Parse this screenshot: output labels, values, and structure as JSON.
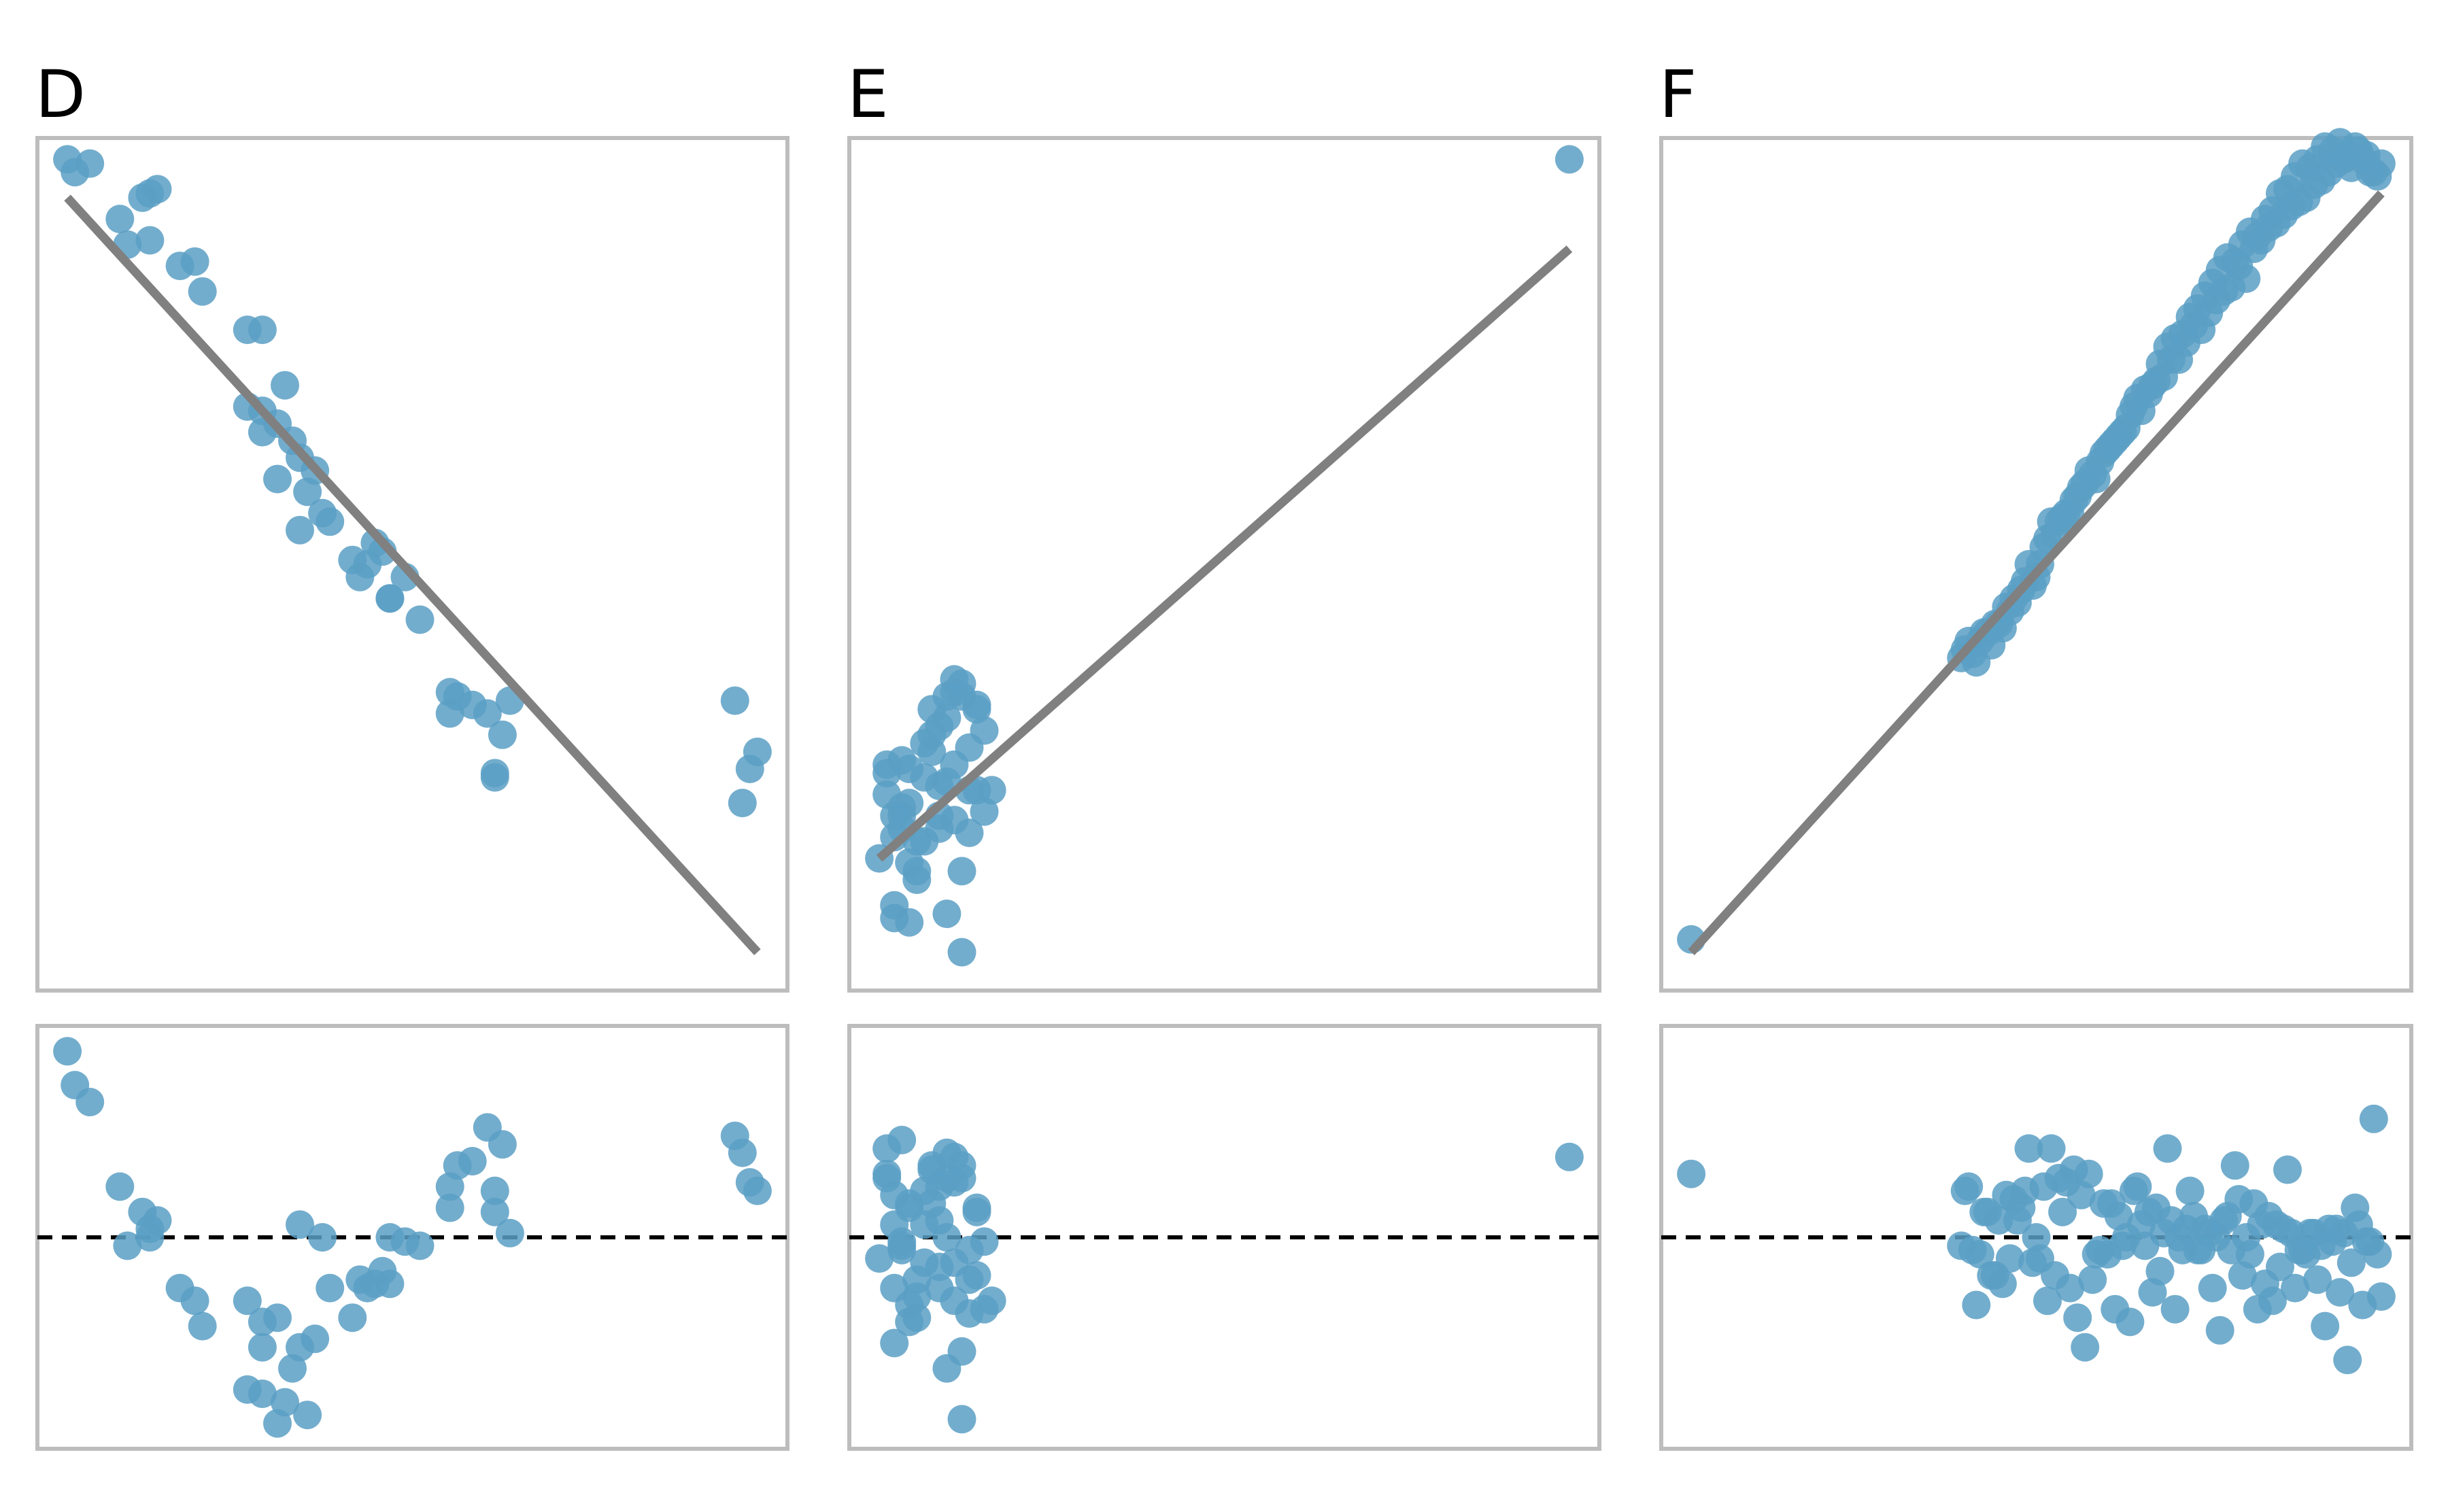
{
  "figure": {
    "point_color": "#5b9fc4",
    "fit_line_color": "#808080",
    "frame_color": "#bdbdbd",
    "zero_line_color": "#000000"
  },
  "chart_data": [
    {
      "panel": "D",
      "type": "scatter",
      "title": "D",
      "xlim": [
        0,
        10
      ],
      "ylim": [
        0,
        10
      ],
      "residual_ylim": [
        -2.5,
        2.5
      ],
      "fit_line": {
        "x": [
          0.4,
          9.6
        ],
        "y": [
          9.3,
          0.45
        ]
      },
      "x": [
        0.4,
        0.5,
        0.7,
        1.1,
        1.4,
        1.6,
        1.5,
        1.5,
        1.2,
        1.9,
        2.1,
        2.2,
        2.8,
        3.0,
        3.3,
        2.8,
        3.0,
        3.2,
        3.0,
        3.5,
        3.4,
        3.7,
        3.2,
        3.6,
        3.8,
        3.5,
        3.9,
        4.2,
        4.4,
        4.5,
        4.6,
        4.7,
        4.3,
        4.9,
        5.1,
        4.7,
        5.6,
        5.5,
        5.5,
        5.8,
        6.0,
        6.2,
        6.1,
        6.1,
        6.3,
        9.3,
        9.4,
        9.5,
        9.6
      ],
      "y": [
        9.75,
        9.6,
        9.7,
        9.05,
        9.3,
        9.4,
        9.35,
        8.8,
        8.75,
        8.5,
        8.55,
        8.2,
        7.75,
        7.75,
        7.1,
        6.85,
        6.55,
        6.65,
        6.8,
        6.25,
        6.45,
        6.1,
        6.0,
        5.85,
        5.6,
        5.4,
        5.5,
        5.05,
        5.0,
        5.25,
        5.15,
        4.6,
        4.85,
        4.85,
        4.35,
        4.6,
        3.45,
        3.25,
        3.5,
        3.35,
        3.25,
        3.0,
        2.55,
        2.5,
        3.4,
        3.4,
        2.2,
        2.6,
        2.8
      ],
      "residuals": [
        2.2,
        1.8,
        1.6,
        0.6,
        0.3,
        0.2,
        0.1,
        0.0,
        -0.1,
        -0.6,
        -0.75,
        -1.05,
        -1.8,
        -1.85,
        -1.95,
        -0.75,
        -1.0,
        -0.95,
        -1.3,
        -1.3,
        -1.55,
        -1.2,
        -2.2,
        -2.1,
        0.0,
        0.15,
        -0.6,
        -0.95,
        -0.6,
        -0.55,
        -0.4,
        -0.55,
        -0.5,
        -0.05,
        -0.1,
        0.0,
        0.85,
        0.6,
        0.35,
        0.9,
        1.3,
        1.1,
        0.55,
        0.3,
        0.05,
        1.2,
        1.0,
        0.65,
        0.55
      ]
    },
    {
      "panel": "E",
      "type": "scatter",
      "title": "E",
      "xlim": [
        0,
        10
      ],
      "ylim": [
        0,
        10
      ],
      "residual_ylim": [
        -2.5,
        2.5
      ],
      "fit_line": {
        "x": [
          0.4,
          9.6
        ],
        "y": [
          1.55,
          8.7
        ]
      },
      "x": [
        0.4,
        0.5,
        0.6,
        0.7,
        0.8,
        0.9,
        1.0,
        1.1,
        1.2,
        1.3,
        1.4,
        0.5,
        0.6,
        0.7,
        0.8,
        0.9,
        1.0,
        1.1,
        1.2,
        1.3,
        1.4,
        1.5,
        1.6,
        1.7,
        1.8,
        1.9,
        0.6,
        0.8,
        1.0,
        1.2,
        1.4,
        1.6,
        1.8,
        0.7,
        0.9,
        1.1,
        1.3,
        1.5,
        1.7,
        0.5,
        0.7,
        1.5,
        1.7,
        1.2,
        1.4,
        1.6,
        0.6,
        0.8,
        1.3,
        1.5,
        9.6
      ],
      "y": [
        1.55,
        2.3,
        1.8,
        2.7,
        2.2,
        1.3,
        1.75,
        3.0,
        2.4,
        3.2,
        3.5,
        2.55,
        2.05,
        1.9,
        2.6,
        1.4,
        2.9,
        3.3,
        2.05,
        2.45,
        2.0,
        3.45,
        2.35,
        3.3,
        3.05,
        2.35,
        1.0,
        0.8,
        2.5,
        1.9,
        3.65,
        1.85,
        2.1,
        2.15,
        1.75,
        2.8,
        3.45,
        0.45,
        3.35,
        2.65,
        2.05,
        1.4,
        2.35,
        3.1,
        2.65,
        2.85,
        0.85,
        1.5,
        0.9,
        3.6,
        9.75
      ],
      "residuals": [
        -0.25,
        0.75,
        0.15,
        1.15,
        0.35,
        -0.7,
        -0.3,
        0.85,
        0.2,
        1.0,
        0.65,
        1.05,
        0.5,
        -0.05,
        0.4,
        -0.95,
        0.55,
        0.8,
        -0.35,
        0.0,
        -0.75,
        0.85,
        -0.5,
        0.35,
        -0.05,
        -0.75,
        -0.6,
        -1.0,
        0.15,
        -0.6,
        0.95,
        -0.9,
        -0.85,
        -0.1,
        -0.5,
        0.4,
        0.7,
        -2.15,
        0.3,
        0.7,
        -0.15,
        -1.35,
        -0.45,
        0.6,
        -0.3,
        -0.15,
        -1.25,
        -0.8,
        -1.55,
        0.7,
        0.95
      ]
    },
    {
      "panel": "F",
      "type": "scatter",
      "title": "F",
      "xlim": [
        0,
        10
      ],
      "ylim": [
        0,
        10
      ],
      "residual_ylim": [
        -2.5,
        2.5
      ],
      "fit_line": {
        "x": [
          0.4,
          9.6
        ],
        "y": [
          0.45,
          9.35
        ]
      },
      "x": [
        0.4,
        4.0,
        4.1,
        4.2,
        4.3,
        4.4,
        4.5,
        4.6,
        4.7,
        4.8,
        4.9,
        5.0,
        5.1,
        5.2,
        5.3,
        5.4,
        5.5,
        5.6,
        5.7,
        5.8,
        5.9,
        6.0,
        6.1,
        6.2,
        6.3,
        6.4,
        6.5,
        6.6,
        6.7,
        6.8,
        6.9,
        7.0,
        7.1,
        7.2,
        7.3,
        7.4,
        7.5,
        7.6,
        7.7,
        7.8,
        7.9,
        8.0,
        8.1,
        8.2,
        8.3,
        8.4,
        8.5,
        8.6,
        8.7,
        8.8,
        8.9,
        9.0,
        9.1,
        9.2,
        9.3,
        9.4,
        9.5,
        9.6,
        4.05,
        4.15,
        4.25,
        4.35,
        4.45,
        4.55,
        4.65,
        4.75,
        4.85,
        4.95,
        5.05,
        5.15,
        5.25,
        5.35,
        5.45,
        5.55,
        5.65,
        5.75,
        5.85,
        5.95,
        6.05,
        6.15,
        6.25,
        6.35,
        6.45,
        6.55,
        6.65,
        6.75,
        6.85,
        6.95,
        7.05,
        7.15,
        7.25,
        7.35,
        7.45,
        7.55,
        7.65,
        7.75,
        7.85,
        7.95,
        8.05,
        8.15,
        8.25,
        8.35,
        8.45,
        8.55,
        8.65,
        8.75,
        8.85,
        8.95,
        9.05,
        9.15,
        9.25,
        9.35,
        9.45,
        9.55
      ],
      "y": [
        0.6,
        3.9,
        4.1,
        3.85,
        4.2,
        4.05,
        4.3,
        4.5,
        4.6,
        4.7,
        5.0,
        4.85,
        5.2,
        5.5,
        5.5,
        5.6,
        5.75,
        5.9,
        6.1,
        6.0,
        6.3,
        6.4,
        6.5,
        6.6,
        6.85,
        6.8,
        7.0,
        7.15,
        7.2,
        7.4,
        7.4,
        7.6,
        7.8,
        7.75,
        7.95,
        8.1,
        8.2,
        8.25,
        8.5,
        8.35,
        8.7,
        8.8,
        8.95,
        9.0,
        9.1,
        9.2,
        9.25,
        9.3,
        9.45,
        9.5,
        9.6,
        9.7,
        9.75,
        9.65,
        9.85,
        9.8,
        9.6,
        9.7,
        4.0,
        3.95,
        4.1,
        4.2,
        4.3,
        4.25,
        4.45,
        4.55,
        4.8,
        4.75,
        5.0,
        5.3,
        5.35,
        5.55,
        5.6,
        5.8,
        5.95,
        6.05,
        6.2,
        6.35,
        6.45,
        6.55,
        6.75,
        6.95,
        7.05,
        7.1,
        7.35,
        7.55,
        7.65,
        7.7,
        7.9,
        8.0,
        8.15,
        8.3,
        8.45,
        8.6,
        8.55,
        8.75,
        8.9,
        8.85,
        9.05,
        9.15,
        9.35,
        9.4,
        9.55,
        9.7,
        9.65,
        9.75,
        9.9,
        9.85,
        9.95,
        9.8,
        9.9,
        9.75,
        9.6,
        9.55
      ],
      "residuals": [
        0.75,
        -0.1,
        0.6,
        -0.8,
        0.3,
        -0.45,
        0.2,
        0.5,
        0.45,
        0.35,
        1.05,
        0.0,
        0.6,
        1.05,
        0.7,
        0.65,
        0.8,
        0.5,
        0.75,
        -0.2,
        0.4,
        0.4,
        0.25,
        0.0,
        0.55,
        0.15,
        0.3,
        0.35,
        0.05,
        0.2,
        0.0,
        0.1,
        0.25,
        -0.15,
        0.05,
        0.0,
        0.2,
        -0.15,
        0.45,
        0.0,
        0.4,
        0.15,
        0.25,
        0.15,
        0.1,
        0.05,
        -0.15,
        -0.2,
        0.05,
        -0.1,
        0.1,
        0.1,
        0.05,
        -0.3,
        0.15,
        -0.05,
        1.4,
        -0.7,
        0.55,
        -0.15,
        -0.2,
        0.3,
        -0.45,
        -0.55,
        -0.25,
        0.2,
        0.55,
        -0.3,
        -0.25,
        -0.75,
        -0.45,
        0.3,
        -0.6,
        -0.95,
        -1.3,
        -0.5,
        -0.15,
        -0.2,
        -0.85,
        -0.1,
        -1.0,
        0.6,
        -0.1,
        -0.65,
        -0.4,
        1.05,
        -0.85,
        -0.15,
        0.55,
        -0.15,
        0.1,
        -0.6,
        -1.1,
        0.25,
        0.85,
        -0.45,
        -0.2,
        -0.85,
        -0.55,
        -0.75,
        -0.35,
        0.8,
        -0.6,
        -0.15,
        0.05,
        -0.5,
        -1.05,
        -0.05,
        -0.65,
        -1.45,
        0.35,
        -0.8,
        -0.05,
        -0.2,
        0.75,
        -0.35
      ]
    }
  ]
}
